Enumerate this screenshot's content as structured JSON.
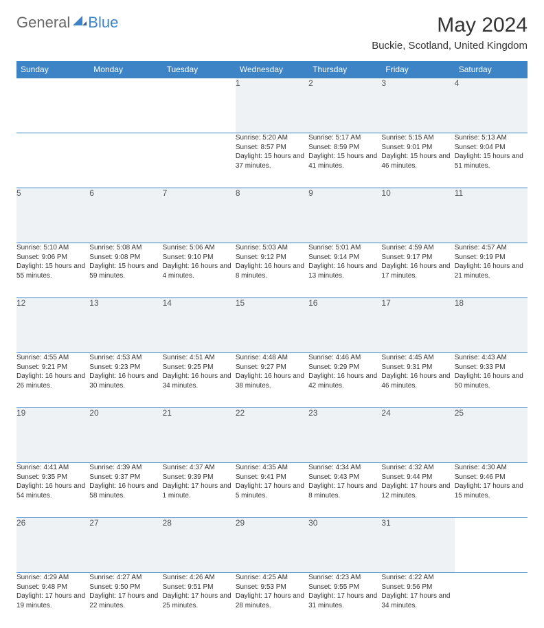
{
  "brand": {
    "part1": "General",
    "part2": "Blue"
  },
  "title": "May 2024",
  "location": "Buckie, Scotland, United Kingdom",
  "colors": {
    "accent": "#3d84c6",
    "daynum_bg": "#eef2f5",
    "text": "#333333"
  },
  "weekdays": [
    "Sunday",
    "Monday",
    "Tuesday",
    "Wednesday",
    "Thursday",
    "Friday",
    "Saturday"
  ],
  "weeks": [
    {
      "nums": [
        "",
        "",
        "",
        "1",
        "2",
        "3",
        "4"
      ],
      "cells": [
        {
          "sr": "",
          "ss": "",
          "dl": ""
        },
        {
          "sr": "",
          "ss": "",
          "dl": ""
        },
        {
          "sr": "",
          "ss": "",
          "dl": ""
        },
        {
          "sr": "Sunrise: 5:20 AM",
          "ss": "Sunset: 8:57 PM",
          "dl": "Daylight: 15 hours and 37 minutes."
        },
        {
          "sr": "Sunrise: 5:17 AM",
          "ss": "Sunset: 8:59 PM",
          "dl": "Daylight: 15 hours and 41 minutes."
        },
        {
          "sr": "Sunrise: 5:15 AM",
          "ss": "Sunset: 9:01 PM",
          "dl": "Daylight: 15 hours and 46 minutes."
        },
        {
          "sr": "Sunrise: 5:13 AM",
          "ss": "Sunset: 9:04 PM",
          "dl": "Daylight: 15 hours and 51 minutes."
        }
      ]
    },
    {
      "nums": [
        "5",
        "6",
        "7",
        "8",
        "9",
        "10",
        "11"
      ],
      "cells": [
        {
          "sr": "Sunrise: 5:10 AM",
          "ss": "Sunset: 9:06 PM",
          "dl": "Daylight: 15 hours and 55 minutes."
        },
        {
          "sr": "Sunrise: 5:08 AM",
          "ss": "Sunset: 9:08 PM",
          "dl": "Daylight: 15 hours and 59 minutes."
        },
        {
          "sr": "Sunrise: 5:06 AM",
          "ss": "Sunset: 9:10 PM",
          "dl": "Daylight: 16 hours and 4 minutes."
        },
        {
          "sr": "Sunrise: 5:03 AM",
          "ss": "Sunset: 9:12 PM",
          "dl": "Daylight: 16 hours and 8 minutes."
        },
        {
          "sr": "Sunrise: 5:01 AM",
          "ss": "Sunset: 9:14 PM",
          "dl": "Daylight: 16 hours and 13 minutes."
        },
        {
          "sr": "Sunrise: 4:59 AM",
          "ss": "Sunset: 9:17 PM",
          "dl": "Daylight: 16 hours and 17 minutes."
        },
        {
          "sr": "Sunrise: 4:57 AM",
          "ss": "Sunset: 9:19 PM",
          "dl": "Daylight: 16 hours and 21 minutes."
        }
      ]
    },
    {
      "nums": [
        "12",
        "13",
        "14",
        "15",
        "16",
        "17",
        "18"
      ],
      "cells": [
        {
          "sr": "Sunrise: 4:55 AM",
          "ss": "Sunset: 9:21 PM",
          "dl": "Daylight: 16 hours and 26 minutes."
        },
        {
          "sr": "Sunrise: 4:53 AM",
          "ss": "Sunset: 9:23 PM",
          "dl": "Daylight: 16 hours and 30 minutes."
        },
        {
          "sr": "Sunrise: 4:51 AM",
          "ss": "Sunset: 9:25 PM",
          "dl": "Daylight: 16 hours and 34 minutes."
        },
        {
          "sr": "Sunrise: 4:48 AM",
          "ss": "Sunset: 9:27 PM",
          "dl": "Daylight: 16 hours and 38 minutes."
        },
        {
          "sr": "Sunrise: 4:46 AM",
          "ss": "Sunset: 9:29 PM",
          "dl": "Daylight: 16 hours and 42 minutes."
        },
        {
          "sr": "Sunrise: 4:45 AM",
          "ss": "Sunset: 9:31 PM",
          "dl": "Daylight: 16 hours and 46 minutes."
        },
        {
          "sr": "Sunrise: 4:43 AM",
          "ss": "Sunset: 9:33 PM",
          "dl": "Daylight: 16 hours and 50 minutes."
        }
      ]
    },
    {
      "nums": [
        "19",
        "20",
        "21",
        "22",
        "23",
        "24",
        "25"
      ],
      "cells": [
        {
          "sr": "Sunrise: 4:41 AM",
          "ss": "Sunset: 9:35 PM",
          "dl": "Daylight: 16 hours and 54 minutes."
        },
        {
          "sr": "Sunrise: 4:39 AM",
          "ss": "Sunset: 9:37 PM",
          "dl": "Daylight: 16 hours and 58 minutes."
        },
        {
          "sr": "Sunrise: 4:37 AM",
          "ss": "Sunset: 9:39 PM",
          "dl": "Daylight: 17 hours and 1 minute."
        },
        {
          "sr": "Sunrise: 4:35 AM",
          "ss": "Sunset: 9:41 PM",
          "dl": "Daylight: 17 hours and 5 minutes."
        },
        {
          "sr": "Sunrise: 4:34 AM",
          "ss": "Sunset: 9:43 PM",
          "dl": "Daylight: 17 hours and 8 minutes."
        },
        {
          "sr": "Sunrise: 4:32 AM",
          "ss": "Sunset: 9:44 PM",
          "dl": "Daylight: 17 hours and 12 minutes."
        },
        {
          "sr": "Sunrise: 4:30 AM",
          "ss": "Sunset: 9:46 PM",
          "dl": "Daylight: 17 hours and 15 minutes."
        }
      ]
    },
    {
      "nums": [
        "26",
        "27",
        "28",
        "29",
        "30",
        "31",
        ""
      ],
      "cells": [
        {
          "sr": "Sunrise: 4:29 AM",
          "ss": "Sunset: 9:48 PM",
          "dl": "Daylight: 17 hours and 19 minutes."
        },
        {
          "sr": "Sunrise: 4:27 AM",
          "ss": "Sunset: 9:50 PM",
          "dl": "Daylight: 17 hours and 22 minutes."
        },
        {
          "sr": "Sunrise: 4:26 AM",
          "ss": "Sunset: 9:51 PM",
          "dl": "Daylight: 17 hours and 25 minutes."
        },
        {
          "sr": "Sunrise: 4:25 AM",
          "ss": "Sunset: 9:53 PM",
          "dl": "Daylight: 17 hours and 28 minutes."
        },
        {
          "sr": "Sunrise: 4:23 AM",
          "ss": "Sunset: 9:55 PM",
          "dl": "Daylight: 17 hours and 31 minutes."
        },
        {
          "sr": "Sunrise: 4:22 AM",
          "ss": "Sunset: 9:56 PM",
          "dl": "Daylight: 17 hours and 34 minutes."
        },
        {
          "sr": "",
          "ss": "",
          "dl": ""
        }
      ]
    }
  ]
}
